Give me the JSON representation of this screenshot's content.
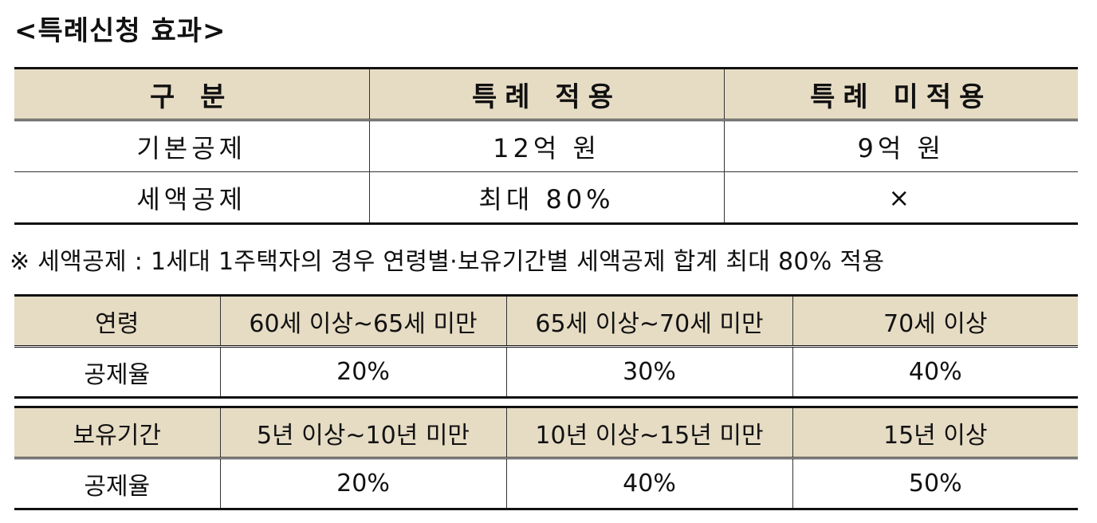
{
  "title": "<특례신청 효과>",
  "table1": {
    "headers": [
      "구 분",
      "특례 적용",
      "특례 미적용"
    ],
    "rows": [
      [
        "기본공제",
        "12억 원",
        "9억 원"
      ],
      [
        "세액공제",
        "최대 80%",
        "×"
      ]
    ]
  },
  "note": "※ 세액공제 : 1세대 1주택자의 경우 연령별·보유기간별 세액공제 합계 최대 80% 적용",
  "age_table": {
    "headers": [
      "연령",
      "60세 이상~65세 미만",
      "65세 이상~70세 미만",
      "70세 이상"
    ],
    "row": [
      "공제율",
      "20%",
      "30%",
      "40%"
    ]
  },
  "holding_table": {
    "headers": [
      "보유기간",
      "5년 이상~10년 미만",
      "10년 이상~15년 미만",
      "15년 이상"
    ],
    "row": [
      "공제율",
      "20%",
      "40%",
      "50%"
    ]
  }
}
